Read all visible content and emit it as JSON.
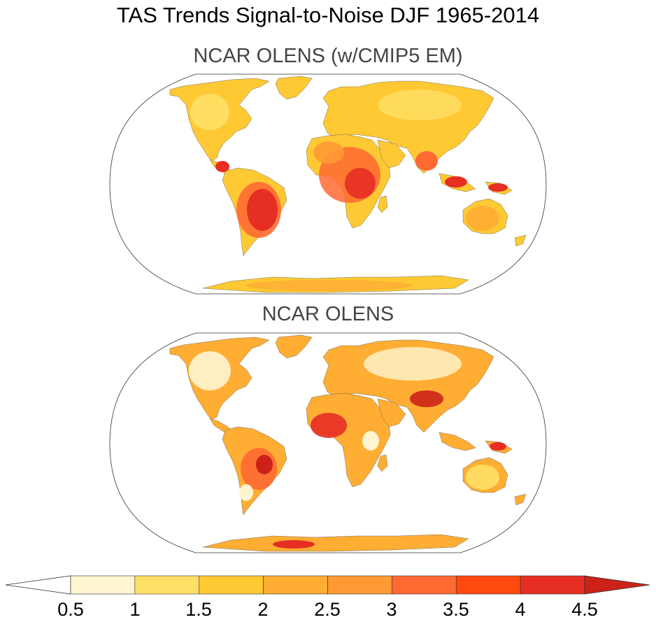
{
  "title": "TAS Trends Signal-to-Noise DJF 1965-2014",
  "panels": [
    {
      "title": "NCAR OLENS (w/CMIP5 EM)"
    },
    {
      "title": "NCAR OLENS"
    }
  ],
  "colorbar": {
    "labels": [
      "0.5",
      "1",
      "1.5",
      "2",
      "2.5",
      "3",
      "3.5",
      "4",
      "4.5"
    ],
    "colors": [
      "#ffffff",
      "#fff5d0",
      "#ffe066",
      "#ffc933",
      "#ffad33",
      "#ff9933",
      "#ff6a33",
      "#ff4a0f",
      "#e62e23",
      "#cc2218"
    ]
  },
  "chart_data": {
    "type": "heatmap",
    "variable": "TAS Trends Signal-to-Noise",
    "season": "DJF",
    "period": "1965-2014",
    "projection": "robinson",
    "levels": [
      0.5,
      1,
      1.5,
      2,
      2.5,
      3,
      3.5,
      4,
      4.5
    ],
    "panels": [
      "NCAR OLENS (w/CMIP5 EM)",
      "NCAR OLENS"
    ]
  }
}
